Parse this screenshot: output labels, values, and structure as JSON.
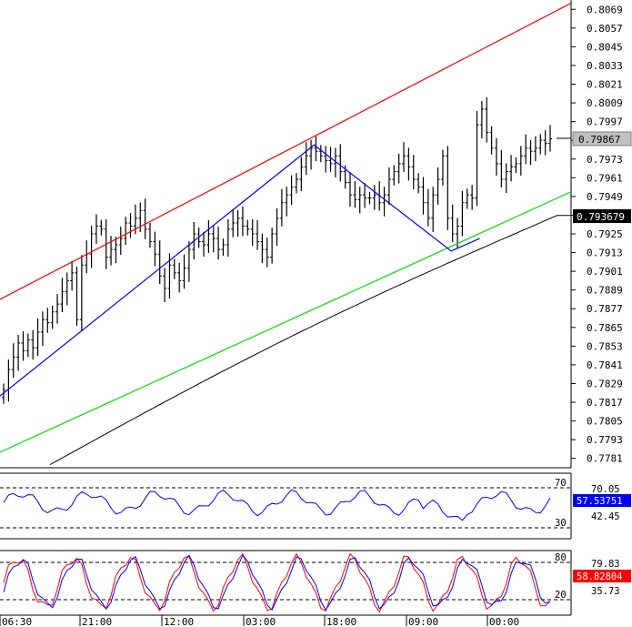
{
  "chart_data": [
    {
      "type": "candlestick",
      "panel": "price",
      "ylim": [
        0.7775,
        0.8075
      ],
      "y_ticks": [
        "0.8069",
        "0.8057",
        "0.8045",
        "0.8033",
        "0.8021",
        "0.8009",
        "0.7997",
        "0.7985",
        "0.7973",
        "0.7961",
        "0.7949",
        "0.7937",
        "0.7925",
        "0.7913",
        "0.7901",
        "0.7889",
        "0.7877",
        "0.7865",
        "0.7853",
        "0.7841",
        "0.7829",
        "0.7817",
        "0.7805",
        "0.7793",
        "0.7781"
      ],
      "current_price_label": "0.79867",
      "ma_value_label": "0.793679",
      "x_ticks": [
        "06:30",
        "21:00",
        "12:00",
        "03:00",
        "18:00",
        "09:00",
        "00:00"
      ],
      "closes": [
        0.7825,
        0.7838,
        0.7846,
        0.7855,
        0.785,
        0.7857,
        0.7852,
        0.7862,
        0.787,
        0.7868,
        0.7875,
        0.788,
        0.7888,
        0.7895,
        0.79,
        0.787,
        0.7905,
        0.7912,
        0.7925,
        0.793,
        0.7928,
        0.791,
        0.7915,
        0.7918,
        0.7922,
        0.7932,
        0.793,
        0.7935,
        0.794,
        0.7928,
        0.792,
        0.7912,
        0.7898,
        0.789,
        0.7905,
        0.79,
        0.7895,
        0.7903,
        0.7915,
        0.7925,
        0.792,
        0.7918,
        0.7925,
        0.7922,
        0.7915,
        0.7918,
        0.7928,
        0.7932,
        0.7935,
        0.793,
        0.7928,
        0.7925,
        0.792,
        0.7915,
        0.791,
        0.7925,
        0.7935,
        0.7945,
        0.795,
        0.7955,
        0.796,
        0.7968,
        0.7975,
        0.798,
        0.7978,
        0.7975,
        0.7972,
        0.797,
        0.7975,
        0.7965,
        0.7958,
        0.795,
        0.7947,
        0.795,
        0.7948,
        0.7948,
        0.795,
        0.7945,
        0.795,
        0.796,
        0.7965,
        0.797,
        0.7975,
        0.7968,
        0.796,
        0.7955,
        0.7945,
        0.7935,
        0.795,
        0.796,
        0.7975,
        0.7935,
        0.7925,
        0.793,
        0.7945,
        0.795,
        0.7948,
        0.7995,
        0.8005,
        0.799,
        0.798,
        0.797,
        0.796,
        0.7965,
        0.7968,
        0.797,
        0.7975,
        0.798,
        0.7978,
        0.798,
        0.7985,
        0.7983,
        0.7986
      ],
      "trendlines": [
        {
          "color": "#ff0000",
          "from": [
            0,
            0.7883
          ],
          "to": [
            1,
            0.8073
          ]
        },
        {
          "color": "#00dd00",
          "from": [
            0,
            0.7785
          ],
          "to": [
            1,
            0.7952
          ]
        },
        {
          "color": "#0000ff",
          "points": [
            [
              0,
              0.7821
            ],
            [
              0.55,
              0.7982
            ],
            [
              0.79,
              0.7914
            ],
            [
              0.84,
              0.7922
            ]
          ]
        }
      ]
    },
    {
      "type": "line",
      "panel": "oscillator-1",
      "levels": [
        "70",
        "30"
      ],
      "label_values": [
        "70.05",
        "42.45"
      ],
      "current_label": "57.53751",
      "series": [
        {
          "color": "#0000ff"
        }
      ]
    },
    {
      "type": "line",
      "panel": "oscillator-2",
      "levels": [
        "80",
        "20"
      ],
      "label_values": [
        "79.83",
        "35.73"
      ],
      "current_label": "58.82804",
      "series": [
        {
          "color": "#ff0000"
        },
        {
          "color": "#0000ff"
        }
      ]
    }
  ],
  "colors": {
    "red_channel": "#ff0000",
    "green_channel": "#00dd00",
    "blue_zigzag": "#0000ff",
    "ma_line": "#000000",
    "price_badge_bg": "#c0c0c0",
    "ma_badge_bg": "#000000",
    "osc1_badge_bg": "#0000ff",
    "osc2_badge_bg": "#ff0000"
  }
}
